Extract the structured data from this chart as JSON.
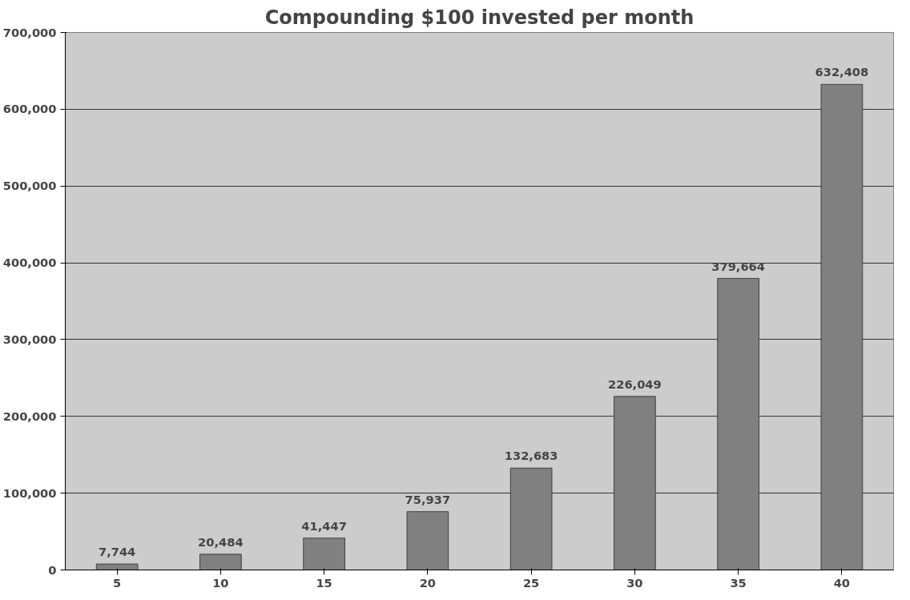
{
  "chart_data": {
    "type": "bar",
    "title": "Compounding $100 invested per month",
    "categories": [
      "5",
      "10",
      "15",
      "20",
      "25",
      "30",
      "35",
      "40"
    ],
    "values": [
      7744,
      20484,
      41447,
      75937,
      132683,
      226049,
      379664,
      632408
    ],
    "color": "#808080",
    "ylim": [
      0,
      700000
    ],
    "yticks": [
      {
        "value": 0,
        "label": "0"
      },
      {
        "value": 100000,
        "label": "100,000"
      },
      {
        "value": 200000,
        "label": "200,000"
      },
      {
        "value": 300000,
        "label": "300,000"
      },
      {
        "value": 400000,
        "label": "400,000"
      },
      {
        "value": 500000,
        "label": "500,000"
      },
      {
        "value": 600000,
        "label": "600,000"
      },
      {
        "value": 700000,
        "label": "700,000"
      }
    ],
    "value_labels": [
      "7,744",
      "20,484",
      "41,447",
      "75,937",
      "132,683",
      "226,049",
      "379,664",
      "632,408"
    ],
    "grid": "y"
  }
}
